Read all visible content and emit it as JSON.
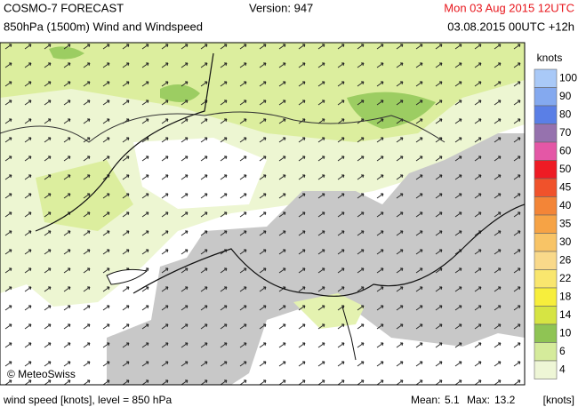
{
  "header": {
    "title": "COSMO-7 FORECAST",
    "version": "Version: 947",
    "valid_time": "Mon 03 Aug 2015 12UTC",
    "subtitle": "850hPa (1500m) Wind and Windspeed",
    "run_time": "03.08.2015 00UTC +12h"
  },
  "legend": {
    "title": "knots",
    "levels": [
      {
        "label": 100,
        "color": "#a9c9f7"
      },
      {
        "label": 90,
        "color": "#84a9ef"
      },
      {
        "label": 80,
        "color": "#5a7fe6"
      },
      {
        "label": 70,
        "color": "#9672ae"
      },
      {
        "label": 60,
        "color": "#e457a6"
      },
      {
        "label": 50,
        "color": "#ee1b24"
      },
      {
        "label": 45,
        "color": "#f0522b"
      },
      {
        "label": 40,
        "color": "#f38537"
      },
      {
        "label": 35,
        "color": "#f6a345"
      },
      {
        "label": 30,
        "color": "#f8c466"
      },
      {
        "label": 26,
        "color": "#f9d98a"
      },
      {
        "label": 22,
        "color": "#f9e66e"
      },
      {
        "label": 18,
        "color": "#f7ee3c"
      },
      {
        "label": 14,
        "color": "#d6e443"
      },
      {
        "label": 10,
        "color": "#8fc454"
      },
      {
        "label": 6,
        "color": "#d5eb9b"
      },
      {
        "label": 4,
        "color": "#eef6d6"
      }
    ]
  },
  "map": {
    "credit": "© MeteoSwiss"
  },
  "footer": {
    "description": "wind speed [knots], level = 850 hPa",
    "mean_label": "Mean:",
    "mean": 5.1,
    "max_label": "Max:",
    "max": 13.2,
    "unit": "[knots]"
  }
}
